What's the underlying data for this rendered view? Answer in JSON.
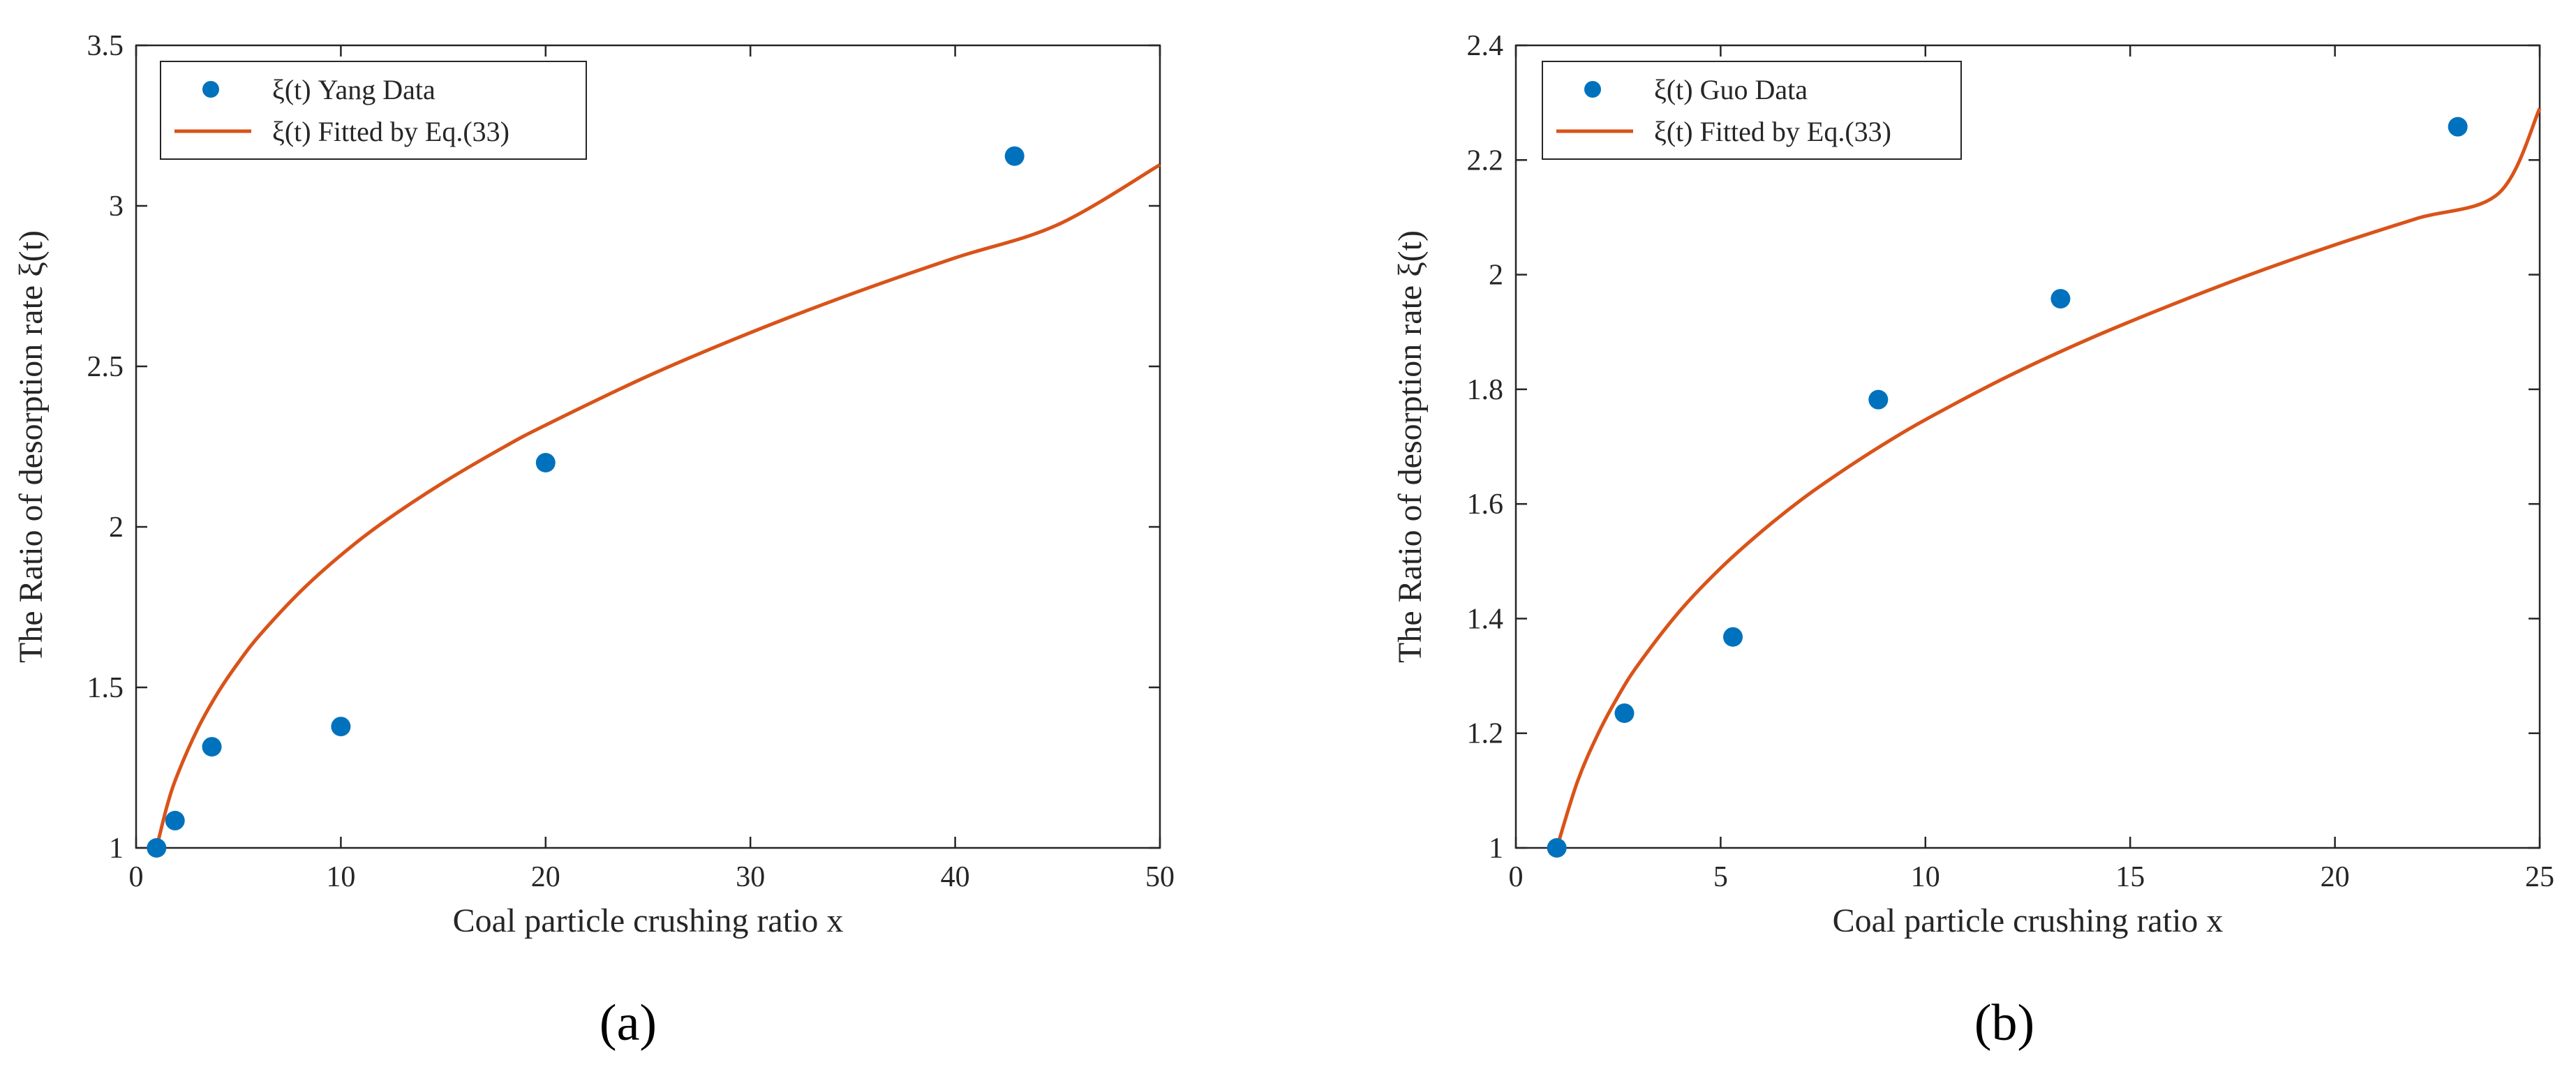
{
  "colors": {
    "data_marker": "#0072BD",
    "fit_line": "#D95319",
    "axes": "#262626"
  },
  "chart_data": [
    {
      "type": "scatter",
      "panel_label": "(a)",
      "xlabel": "Coal particle crushing ratio x",
      "ylabel": "The Ratio of desorption rate ξ(t)",
      "xlim": [
        0,
        50
      ],
      "ylim": [
        1,
        3.5
      ],
      "xticks": [
        0,
        10,
        20,
        30,
        40,
        50
      ],
      "xtick_labels": [
        "0",
        "10",
        "20",
        "30",
        "40",
        "50"
      ],
      "yticks": [
        1,
        1.5,
        2,
        2.5,
        3,
        3.5
      ],
      "ytick_labels": [
        "1",
        "1.5",
        "2",
        "2.5",
        "3",
        "3.5"
      ],
      "legend_position": "top-left",
      "series": [
        {
          "name": "ξ(t) Yang Data",
          "kind": "marker",
          "x": [
            1,
            1.9,
            3.7,
            10,
            20,
            42.9
          ],
          "y": [
            1.0,
            1.085,
            1.315,
            1.378,
            2.2,
            3.155
          ]
        },
        {
          "name": "ξ(t) Fitted by Eq.(33)",
          "kind": "line",
          "x": [
            1,
            1.5,
            2,
            3,
            4,
            5,
            6,
            8,
            10,
            12,
            15,
            18,
            20,
            25,
            30,
            35,
            40,
            45,
            50
          ],
          "y": [
            1.0,
            1.128,
            1.225,
            1.37,
            1.484,
            1.578,
            1.66,
            1.797,
            1.912,
            2.011,
            2.138,
            2.25,
            2.317,
            2.47,
            2.605,
            2.727,
            2.838,
            2.941,
            3.128
          ]
        }
      ]
    },
    {
      "type": "scatter",
      "panel_label": "(b)",
      "xlabel": "Coal particle crushing ratio x",
      "ylabel": "The Ratio of desorption rate ξ(t)",
      "xlim": [
        0,
        25
      ],
      "ylim": [
        1,
        2.4
      ],
      "xticks": [
        0,
        5,
        10,
        15,
        20,
        25
      ],
      "xtick_labels": [
        "0",
        "5",
        "10",
        "15",
        "20",
        "25"
      ],
      "yticks": [
        1,
        1.2,
        1.4,
        1.6,
        1.8,
        2,
        2.2,
        2.4
      ],
      "ytick_labels": [
        "1",
        "1.2",
        "1.4",
        "1.6",
        "1.8",
        "2",
        "2.2",
        "2.4"
      ],
      "legend_position": "top-left",
      "series": [
        {
          "name": "ξ(t) Guo Data",
          "kind": "marker",
          "x": [
            1,
            2.65,
            5.3,
            8.85,
            13.3,
            23.0
          ],
          "y": [
            1.0,
            1.235,
            1.368,
            1.782,
            1.958,
            2.258
          ]
        },
        {
          "name": "ξ(t) Fitted by Eq.(33)",
          "kind": "line",
          "x": [
            1,
            1.5,
            2,
            2.5,
            3,
            4,
            5,
            6,
            7,
            8,
            9,
            10,
            12,
            14,
            16,
            18,
            20,
            22,
            24,
            25
          ],
          "y": [
            1.0,
            1.115,
            1.198,
            1.265,
            1.321,
            1.413,
            1.488,
            1.552,
            1.609,
            1.659,
            1.705,
            1.747,
            1.822,
            1.888,
            1.947,
            2.002,
            2.052,
            2.098,
            2.142,
            2.29
          ]
        }
      ]
    }
  ]
}
